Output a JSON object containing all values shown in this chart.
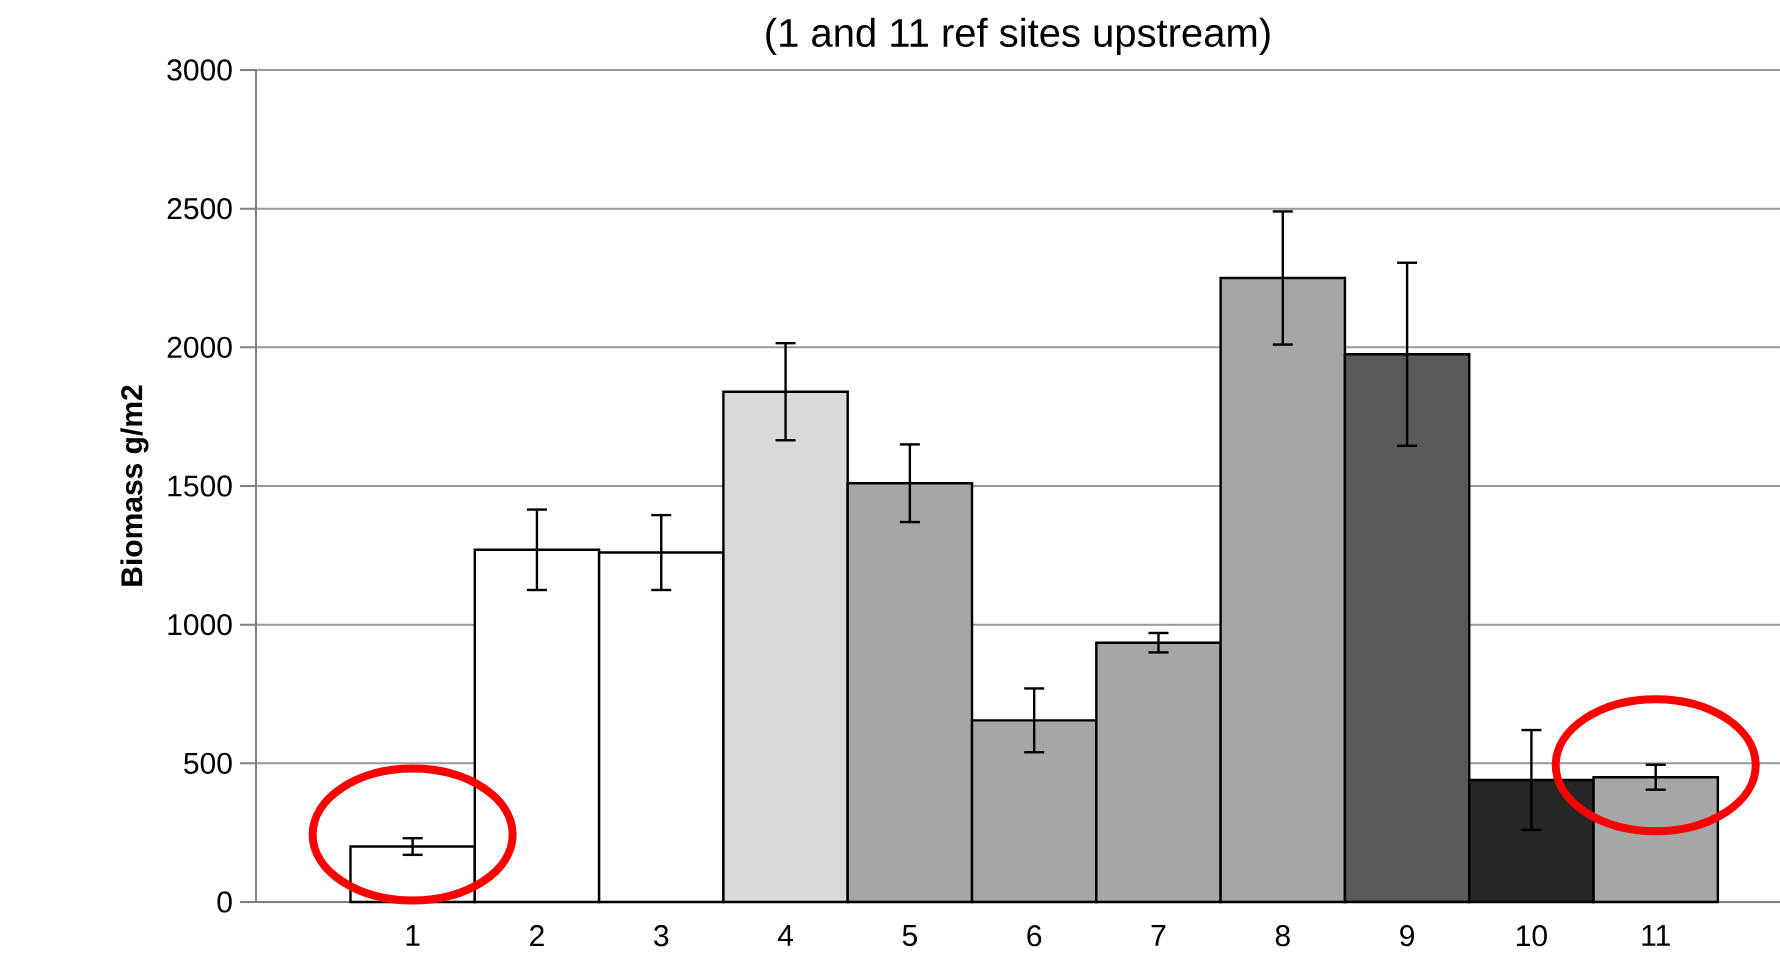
{
  "chart_data": {
    "type": "bar",
    "title": "(1 and 11 ref sites upstream)",
    "ylabel": "Biomass g/m2",
    "categories": [
      "1",
      "2",
      "3",
      "4",
      "5",
      "6",
      "7",
      "8",
      "9",
      "10",
      "11"
    ],
    "values": [
      200,
      1270,
      1260,
      1840,
      1510,
      655,
      935,
      2250,
      1975,
      440,
      450
    ],
    "errors": [
      30,
      145,
      135,
      175,
      140,
      115,
      35,
      240,
      330,
      180,
      45
    ],
    "colors": [
      "#ffffff",
      "#ffffff",
      "#ffffff",
      "#d9d9d9",
      "#a6a6a6",
      "#a6a6a6",
      "#a6a6a6",
      "#a6a6a6",
      "#595959",
      "#262626",
      "#a6a6a6"
    ],
    "ylim": [
      0,
      3000
    ],
    "yticks": [
      0,
      500,
      1000,
      1500,
      2000,
      2500,
      3000
    ],
    "grid": "y"
  }
}
